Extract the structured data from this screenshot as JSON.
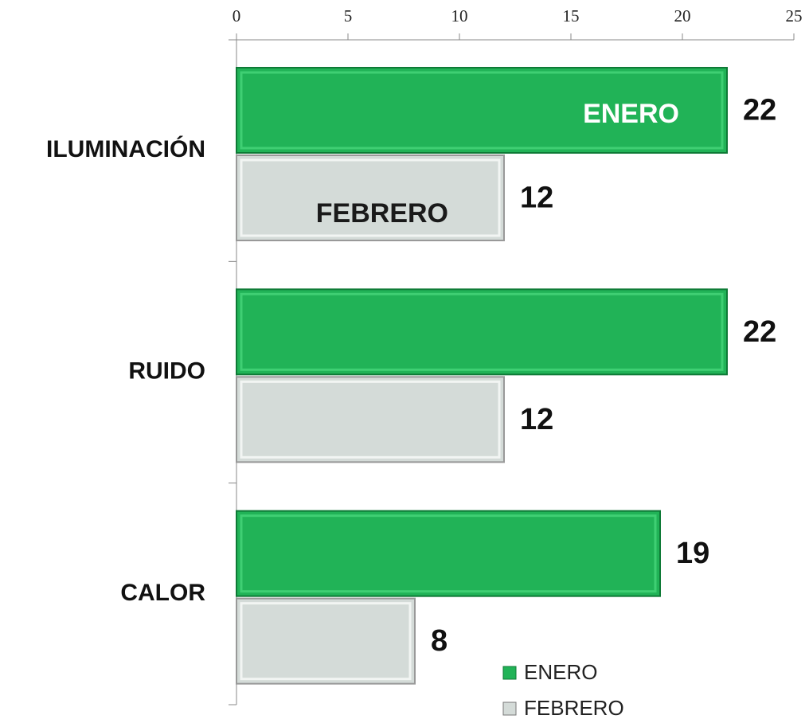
{
  "chart_data": {
    "type": "bar",
    "orientation": "horizontal",
    "categories": [
      "ILUMINACIÓN",
      "RUIDO",
      "CALOR"
    ],
    "series": [
      {
        "name": "ENERO",
        "color": "#21b357",
        "values": [
          22,
          22,
          19
        ]
      },
      {
        "name": "FEBRERO",
        "color": "#d4dbd8",
        "values": [
          12,
          12,
          8
        ]
      }
    ],
    "xlim": [
      0,
      25
    ],
    "xticks": [
      0,
      5,
      10,
      15,
      20,
      25
    ],
    "annotations": [
      "ENERO",
      "FEBRERO"
    ],
    "legend": "bottom-right"
  }
}
